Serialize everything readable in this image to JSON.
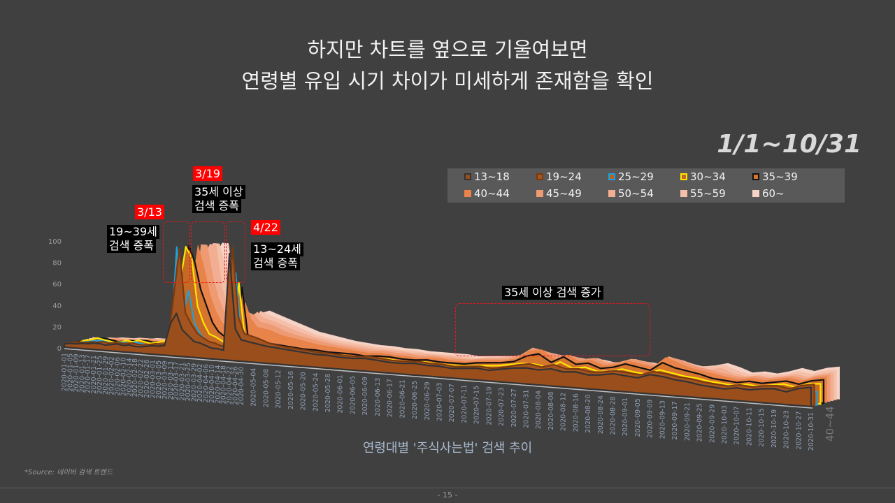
{
  "slide": {
    "title_line1": "하지만 차트를 옆으로 기울여보면",
    "title_line2": "연령별 유입 시기 차이가 미세하게 존재함을 확인",
    "date_range": "1/1~10/31",
    "source": "*Source: 네이버 검색 트렌드",
    "page_number": "- 15 -"
  },
  "annotations": [
    {
      "date": "3/13",
      "text1": "19~39세",
      "text2": "검색 증폭"
    },
    {
      "date": "3/19",
      "text1": "35세 이상",
      "text2": "검색 증폭"
    },
    {
      "date": "4/22",
      "text1": "13~24세",
      "text2": "검색 증폭"
    },
    {
      "text1": "35세 이상 검색 증가"
    }
  ],
  "chart_data": {
    "type": "area",
    "style": "3d-stacked-depth",
    "title": "",
    "xlabel": "연령대별 '주식사는법' 검색 추이",
    "ylabel": "",
    "ylim": [
      0,
      100
    ],
    "yticks": [
      0,
      20,
      40,
      60,
      80,
      100
    ],
    "depth_axis_label": "40~44",
    "grid": false,
    "legend_position": "top-right",
    "x": [
      "2020-01-01",
      "2020-01-05",
      "2020-01-09",
      "2020-01-13",
      "2020-01-17",
      "2020-01-21",
      "2020-01-25",
      "2020-01-29",
      "2020-02-02",
      "2020-02-06",
      "2020-02-10",
      "2020-02-14",
      "2020-02-18",
      "2020-02-22",
      "2020-02-26",
      "2020-03-01",
      "2020-03-05",
      "2020-03-09",
      "2020-03-13",
      "2020-03-17",
      "2020-03-21",
      "2020-03-25",
      "2020-03-29",
      "2020-04-02",
      "2020-04-06",
      "2020-04-10",
      "2020-04-14",
      "2020-04-18",
      "2020-04-22",
      "2020-04-26",
      "2020-04-30",
      "2020-05-04",
      "2020-05-08",
      "2020-05-12",
      "2020-05-16",
      "2020-05-20",
      "2020-05-24",
      "2020-05-28",
      "2020-06-01",
      "2020-06-05",
      "2020-06-09",
      "2020-06-13",
      "2020-06-17",
      "2020-06-21",
      "2020-06-25",
      "2020-06-29",
      "2020-07-03",
      "2020-07-07",
      "2020-07-11",
      "2020-07-15",
      "2020-07-19",
      "2020-07-23",
      "2020-07-27",
      "2020-07-31",
      "2020-08-04",
      "2020-08-08",
      "2020-08-12",
      "2020-08-16",
      "2020-08-20",
      "2020-08-24",
      "2020-08-28",
      "2020-09-01",
      "2020-09-05",
      "2020-09-09",
      "2020-09-13",
      "2020-09-17",
      "2020-09-21",
      "2020-09-25",
      "2020-09-29",
      "2020-10-03",
      "2020-10-07",
      "2020-10-11",
      "2020-10-15",
      "2020-10-19",
      "2020-10-23",
      "2020-10-27",
      "2020-10-31"
    ],
    "series": [
      {
        "name": "13~18",
        "fill": "#9a4e1c",
        "stroke": "#333333",
        "values": [
          3,
          4,
          4,
          5,
          5,
          6,
          6,
          5,
          6,
          7,
          6,
          7,
          6,
          6,
          7,
          8,
          8,
          9,
          30,
          40,
          25,
          20,
          15,
          14,
          12,
          10,
          10,
          9,
          100,
          30,
          20,
          18,
          16,
          15,
          14,
          13,
          12,
          12,
          11,
          11,
          12,
          11,
          10,
          10,
          11,
          10,
          10,
          9,
          10,
          11,
          10,
          12,
          14,
          15,
          14,
          16,
          14,
          15,
          13,
          14,
          16,
          15,
          14,
          18,
          17,
          15,
          14,
          12,
          11,
          10,
          12,
          11,
          13,
          14,
          12,
          16,
          18
        ]
      },
      {
        "name": "19~24",
        "fill": "#a4541f",
        "stroke": "#7a3a10",
        "values": [
          3,
          4,
          5,
          5,
          6,
          6,
          7,
          6,
          7,
          7,
          7,
          8,
          7,
          7,
          8,
          9,
          9,
          10,
          55,
          100,
          40,
          30,
          22,
          18,
          15,
          14,
          12,
          12,
          105,
          40,
          25,
          22,
          18,
          16,
          15,
          14,
          13,
          13,
          12,
          12,
          13,
          12,
          11,
          11,
          12,
          11,
          11,
          10,
          11,
          12,
          11,
          13,
          16,
          18,
          16,
          19,
          16,
          17,
          15,
          16,
          18,
          17,
          16,
          20,
          19,
          17,
          16,
          14,
          13,
          12,
          14,
          13,
          15,
          16,
          14,
          18,
          20
        ]
      },
      {
        "name": "25~29",
        "fill": "#b8621f",
        "stroke": "#1aa3e0",
        "values": [
          2,
          3,
          4,
          5,
          6,
          7,
          6,
          5,
          6,
          7,
          6,
          8,
          7,
          6,
          7,
          8,
          8,
          9,
          100,
          35,
          60,
          30,
          20,
          15,
          12,
          10,
          10,
          9,
          80,
          15,
          10,
          10,
          9,
          9,
          8,
          8,
          8,
          8,
          8,
          7,
          8,
          8,
          7,
          7,
          8,
          7,
          7,
          7,
          8,
          8,
          8,
          9,
          10,
          10,
          10,
          11,
          10,
          11,
          10,
          10,
          11,
          11,
          10,
          12,
          12,
          11,
          10,
          9,
          9,
          8,
          9,
          9,
          10,
          11,
          10,
          12,
          12
        ]
      },
      {
        "name": "30~34",
        "fill": "#c56a25",
        "stroke": "#ffe600",
        "values": [
          2,
          3,
          5,
          6,
          8,
          7,
          6,
          5,
          6,
          8,
          7,
          9,
          8,
          7,
          8,
          10,
          10,
          12,
          65,
          100,
          90,
          45,
          30,
          20,
          18,
          15,
          12,
          10,
          70,
          20,
          14,
          14,
          12,
          12,
          11,
          11,
          10,
          10,
          10,
          9,
          10,
          10,
          9,
          9,
          10,
          9,
          9,
          9,
          10,
          11,
          12,
          14,
          16,
          16,
          14,
          20,
          15,
          17,
          14,
          15,
          18,
          16,
          15,
          20,
          18,
          16,
          15,
          13,
          12,
          11,
          13,
          12,
          14,
          16,
          14,
          18,
          19
        ]
      },
      {
        "name": "35~39",
        "fill": "#d6752e",
        "stroke": "#111111",
        "values": [
          2,
          3,
          4,
          5,
          7,
          7,
          6,
          5,
          6,
          7,
          7,
          8,
          8,
          7,
          8,
          9,
          10,
          11,
          45,
          100,
          85,
          60,
          45,
          30,
          22,
          18,
          16,
          14,
          65,
          20,
          15,
          15,
          14,
          13,
          12,
          12,
          11,
          11,
          11,
          10,
          11,
          11,
          10,
          10,
          11,
          10,
          10,
          10,
          12,
          13,
          14,
          16,
          22,
          25,
          18,
          24,
          18,
          20,
          16,
          18,
          22,
          20,
          18,
          26,
          22,
          20,
          18,
          15,
          14,
          13,
          15,
          14,
          16,
          18,
          16,
          20,
          22
        ]
      },
      {
        "name": "40~44",
        "fill": "#e8834a",
        "stroke": "#e8834a",
        "values": [
          2,
          3,
          4,
          4,
          5,
          6,
          6,
          5,
          6,
          7,
          7,
          8,
          8,
          7,
          8,
          9,
          10,
          11,
          35,
          60,
          100,
          80,
          55,
          40,
          30,
          25,
          22,
          20,
          50,
          35,
          28,
          26,
          22,
          20,
          18,
          16,
          15,
          14,
          13,
          12,
          13,
          12,
          12,
          11,
          12,
          12,
          11,
          11,
          13,
          14,
          15,
          18,
          26,
          28,
          20,
          25,
          20,
          22,
          18,
          20,
          24,
          22,
          20,
          30,
          26,
          22,
          20,
          18,
          16,
          15,
          17,
          16,
          18,
          20,
          18,
          22,
          24
        ]
      },
      {
        "name": "45~49",
        "fill": "#ee9a72",
        "stroke": "#ee9a72",
        "values": [
          2,
          3,
          3,
          4,
          5,
          5,
          6,
          5,
          6,
          6,
          7,
          7,
          7,
          7,
          8,
          9,
          9,
          10,
          25,
          45,
          100,
          100,
          70,
          50,
          38,
          30,
          25,
          22,
          40,
          38,
          32,
          30,
          25,
          22,
          20,
          18,
          16,
          15,
          14,
          13,
          14,
          13,
          13,
          12,
          13,
          12,
          12,
          12,
          14,
          15,
          16,
          20,
          28,
          26,
          22,
          24,
          21,
          23,
          19,
          21,
          25,
          23,
          21,
          30,
          27,
          23,
          21,
          19,
          17,
          16,
          18,
          17,
          19,
          21,
          19,
          23,
          25
        ]
      },
      {
        "name": "50~54",
        "fill": "#f2ae92",
        "stroke": "#f2ae92",
        "values": [
          2,
          2,
          3,
          4,
          4,
          5,
          5,
          5,
          5,
          6,
          6,
          7,
          7,
          7,
          7,
          8,
          9,
          10,
          20,
          38,
          90,
          100,
          100,
          60,
          45,
          35,
          28,
          25,
          35,
          40,
          35,
          32,
          28,
          24,
          21,
          19,
          17,
          16,
          15,
          14,
          14,
          14,
          13,
          13,
          13,
          13,
          12,
          12,
          14,
          15,
          17,
          20,
          24,
          24,
          22,
          22,
          20,
          22,
          19,
          20,
          24,
          22,
          20,
          28,
          26,
          22,
          20,
          22,
          18,
          16,
          18,
          17,
          19,
          22,
          20,
          24,
          26
        ]
      },
      {
        "name": "55~59",
        "fill": "#f5c0aa",
        "stroke": "#f5c0aa",
        "values": [
          2,
          2,
          3,
          3,
          4,
          4,
          5,
          5,
          5,
          6,
          6,
          6,
          7,
          7,
          7,
          8,
          8,
          9,
          18,
          30,
          70,
          100,
          100,
          80,
          50,
          38,
          30,
          26,
          30,
          40,
          38,
          34,
          30,
          26,
          22,
          20,
          18,
          17,
          16,
          15,
          15,
          14,
          14,
          13,
          13,
          13,
          13,
          12,
          14,
          15,
          17,
          19,
          20,
          22,
          21,
          20,
          19,
          20,
          18,
          19,
          22,
          21,
          19,
          26,
          24,
          21,
          22,
          24,
          20,
          17,
          19,
          18,
          20,
          24,
          22,
          26,
          28
        ]
      },
      {
        "name": "60~",
        "fill": "#f7d3c5",
        "stroke": "#f7d3c5",
        "values": [
          2,
          2,
          2,
          3,
          3,
          4,
          4,
          4,
          5,
          5,
          5,
          6,
          6,
          6,
          7,
          7,
          8,
          8,
          15,
          25,
          55,
          90,
          100,
          100,
          60,
          40,
          32,
          28,
          28,
          38,
          40,
          36,
          32,
          28,
          24,
          22,
          20,
          18,
          17,
          16,
          16,
          15,
          15,
          14,
          14,
          14,
          14,
          13,
          14,
          15,
          16,
          18,
          19,
          20,
          20,
          19,
          18,
          19,
          17,
          18,
          20,
          20,
          18,
          24,
          22,
          20,
          22,
          25,
          22,
          18,
          20,
          19,
          22,
          26,
          24,
          28,
          30
        ]
      }
    ]
  }
}
